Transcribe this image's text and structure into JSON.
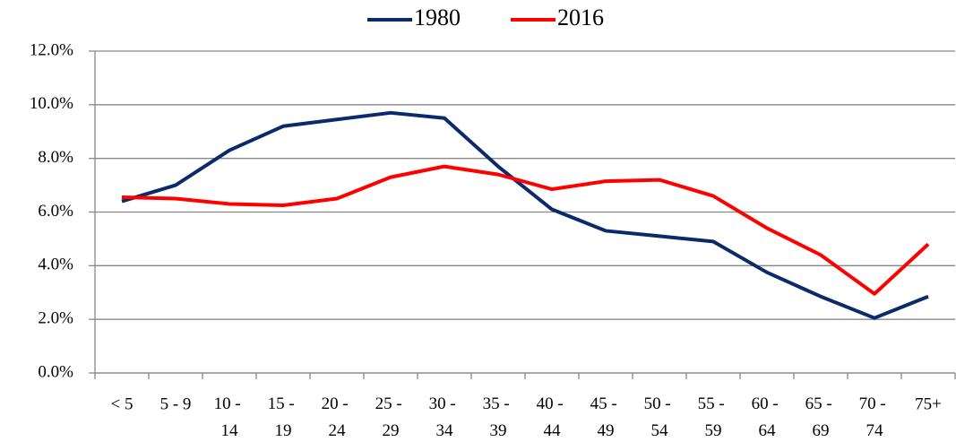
{
  "chart_data": {
    "type": "line",
    "categories": [
      "< 5",
      "5 - 9",
      "10 - 14",
      "15 - 19",
      "20 - 24",
      "25 - 29",
      "30 - 34",
      "35 - 39",
      "40 - 44",
      "45 - 49",
      "50 - 54",
      "55 - 59",
      "60 - 64",
      "65 - 69",
      "70 - 74",
      "75+"
    ],
    "series": [
      {
        "name": "1980",
        "color": "#0c2a6a",
        "values": [
          6.4,
          7.0,
          8.3,
          9.2,
          9.45,
          9.7,
          9.5,
          7.7,
          6.1,
          5.3,
          5.1,
          4.9,
          3.75,
          2.85,
          2.05,
          2.85
        ]
      },
      {
        "name": "2016",
        "color": "#ff0000",
        "values": [
          6.55,
          6.5,
          6.3,
          6.25,
          6.5,
          7.3,
          7.7,
          7.4,
          6.85,
          7.15,
          7.2,
          6.6,
          5.4,
          4.4,
          2.95,
          4.8
        ]
      }
    ],
    "ylim": [
      0,
      12
    ],
    "yticks": [
      {
        "value": 0,
        "label": "0.0%"
      },
      {
        "value": 2,
        "label": "2.0%"
      },
      {
        "value": 4,
        "label": "4.0%"
      },
      {
        "value": 6,
        "label": "6.0%"
      },
      {
        "value": 8,
        "label": "8.0%"
      },
      {
        "value": 10,
        "label": "10.0%"
      },
      {
        "value": 12,
        "label": "12.0%"
      }
    ],
    "grid": true,
    "legend": "top"
  }
}
